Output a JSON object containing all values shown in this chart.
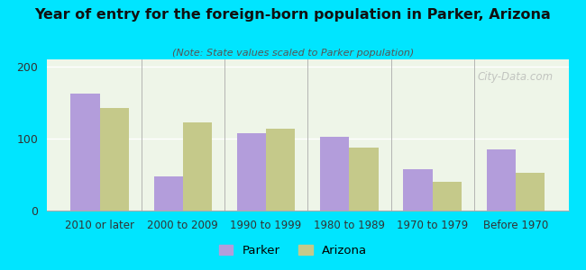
{
  "title": "Year of entry for the foreign-born population in Parker, Arizona",
  "subtitle": "(Note: State values scaled to Parker population)",
  "categories": [
    "2010 or later",
    "2000 to 2009",
    "1990 to 1999",
    "1980 to 1989",
    "1970 to 1979",
    "Before 1970"
  ],
  "parker_values": [
    163,
    47,
    108,
    102,
    58,
    85
  ],
  "arizona_values": [
    143,
    122,
    114,
    88,
    40,
    52
  ],
  "parker_color": "#b39ddb",
  "arizona_color": "#c5c98a",
  "background_outer": "#00e5ff",
  "background_inner": "#eef5e8",
  "ylim": [
    0,
    210
  ],
  "yticks": [
    0,
    100,
    200
  ],
  "bar_width": 0.35,
  "legend_labels": [
    "Parker",
    "Arizona"
  ],
  "watermark": "City-Data.com"
}
